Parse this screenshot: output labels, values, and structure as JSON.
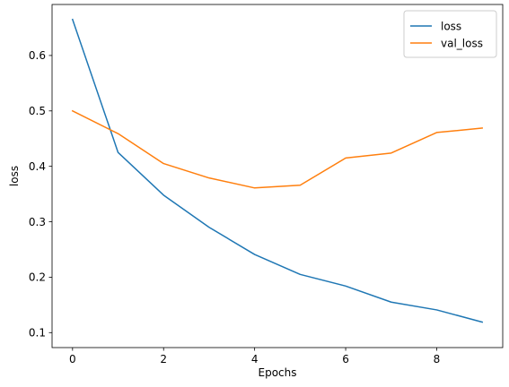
{
  "chart_data": {
    "type": "line",
    "title": "",
    "xlabel": "Epochs",
    "ylabel": "loss",
    "x": [
      0,
      1,
      2,
      3,
      4,
      5,
      6,
      7,
      8,
      9
    ],
    "xlim": [
      -0.45,
      9.45
    ],
    "ylim": [
      0.073,
      0.692
    ],
    "xticks": [
      0,
      2,
      4,
      6,
      8
    ],
    "yticks": [
      0.1,
      0.2,
      0.3,
      0.4,
      0.5,
      0.6
    ],
    "xtick_labels": [
      "0",
      "2",
      "4",
      "6",
      "8"
    ],
    "ytick_labels": [
      "0.1",
      "0.2",
      "0.3",
      "0.4",
      "0.5",
      "0.6"
    ],
    "grid": false,
    "legend": "top-right",
    "series": [
      {
        "name": "loss",
        "color": "#1f77b4",
        "values": [
          0.665,
          0.425,
          0.348,
          0.29,
          0.241,
          0.205,
          0.184,
          0.155,
          0.141,
          0.119
        ]
      },
      {
        "name": "val_loss",
        "color": "#ff7f0e",
        "values": [
          0.5,
          0.459,
          0.405,
          0.379,
          0.361,
          0.366,
          0.415,
          0.424,
          0.461,
          0.469
        ]
      }
    ]
  }
}
